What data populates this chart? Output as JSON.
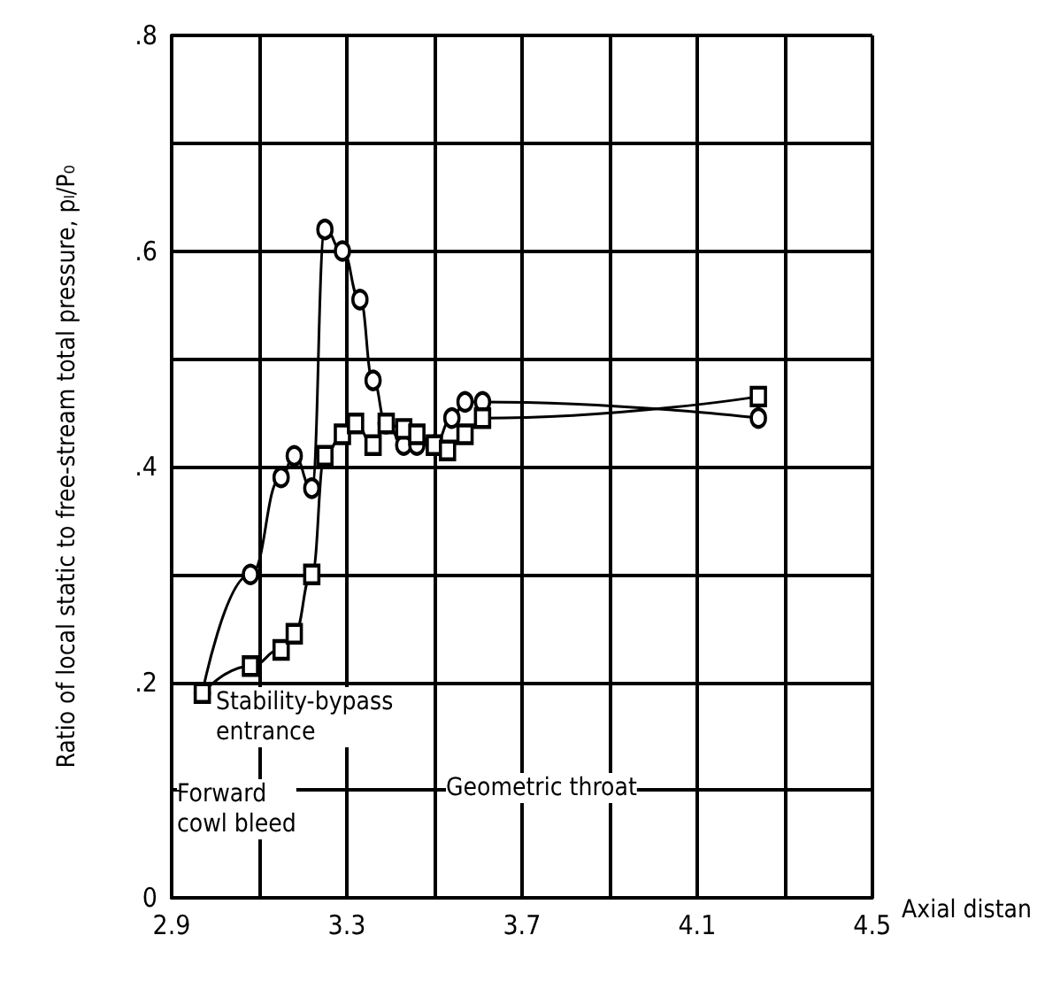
{
  "chart_data": {
    "type": "line",
    "xlabel": "Axial distan",
    "ylabel": "Ratio of local static to free-stream total pressure, pₗ/P₀",
    "xlim": [
      2.9,
      4.5
    ],
    "ylim": [
      0,
      0.8
    ],
    "xticks": [
      2.9,
      {
        "value": 3.1,
        "label": null
      },
      {
        "value": 3.3,
        "label": "3.3"
      },
      {
        "value": 3.5,
        "label": null
      },
      {
        "value": 3.7,
        "label": "3.7"
      },
      {
        "value": 3.9,
        "label": null
      },
      {
        "value": 4.1,
        "label": "4.1"
      },
      {
        "value": 4.3,
        "label": null
      },
      {
        "value": 4.5,
        "label": "4.5"
      }
    ],
    "yticks": [
      0,
      {
        "value": 0.1,
        "label": null
      },
      {
        "value": 0.2,
        "label": ".2"
      },
      {
        "value": 0.3,
        "label": null
      },
      {
        "value": 0.4,
        "label": ".4"
      },
      {
        "value": 0.5,
        "label": null
      },
      {
        "value": 0.6,
        "label": ".6"
      },
      {
        "value": 0.7,
        "label": null
      },
      {
        "value": 0.8,
        "label": ".8"
      }
    ],
    "grid": true,
    "line_style": "solid",
    "series": [
      {
        "color": "#000000",
        "marker": "circle",
        "x": [
          2.97,
          3.08,
          3.15,
          3.18,
          3.22,
          3.25,
          3.29,
          3.33,
          3.36,
          3.39,
          3.43,
          3.46,
          3.5,
          3.54,
          3.57,
          3.61,
          4.24
        ],
        "values": [
          0.19,
          0.3,
          0.39,
          0.41,
          0.38,
          0.62,
          0.6,
          0.555,
          0.48,
          0.44,
          0.42,
          0.42,
          0.42,
          0.445,
          0.46,
          0.46,
          0.445
        ]
      },
      {
        "color": "#000000",
        "marker": "square",
        "x": [
          2.97,
          3.08,
          3.15,
          3.18,
          3.22,
          3.25,
          3.29,
          3.32,
          3.36,
          3.39,
          3.43,
          3.46,
          3.5,
          3.53,
          3.57,
          3.61,
          4.24
        ],
        "values": [
          0.19,
          0.215,
          0.23,
          0.245,
          0.3,
          0.41,
          0.43,
          0.44,
          0.42,
          0.44,
          0.435,
          0.43,
          0.42,
          0.415,
          0.43,
          0.445,
          0.465
        ]
      }
    ],
    "annotations": [
      "Stability-bypass\nentrance",
      "Forward\ncowl bleed",
      "Geometric throat"
    ]
  }
}
